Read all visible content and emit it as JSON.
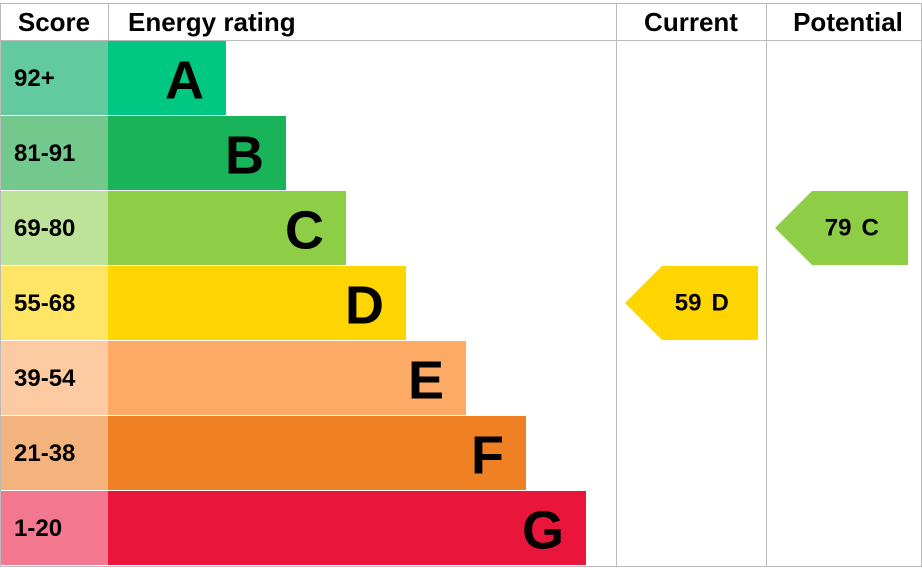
{
  "header": {
    "score": "Score",
    "rating": "Energy rating",
    "current": "Current",
    "potential": "Potential"
  },
  "bands": [
    {
      "score": "92+",
      "letter": "A",
      "color": "#00c781",
      "score_color": "#63c9a0"
    },
    {
      "score": "81-91",
      "letter": "B",
      "color": "#19b459",
      "score_color": "#73c98c"
    },
    {
      "score": "69-80",
      "letter": "C",
      "color": "#8dce46",
      "score_color": "#bde39a"
    },
    {
      "score": "55-68",
      "letter": "D",
      "color": "#ffd500",
      "score_color": "#ffe566"
    },
    {
      "score": "39-54",
      "letter": "E",
      "color": "#fcaa65",
      "score_color": "#fdcaa2"
    },
    {
      "score": "21-38",
      "letter": "F",
      "color": "#ef8023",
      "score_color": "#f4b27c"
    },
    {
      "score": "1-20",
      "letter": "G",
      "color": "#e9153b",
      "score_color": "#f2778f"
    }
  ],
  "current": {
    "value": 59,
    "rating": "D"
  },
  "potential": {
    "value": 79,
    "rating": "C"
  }
}
